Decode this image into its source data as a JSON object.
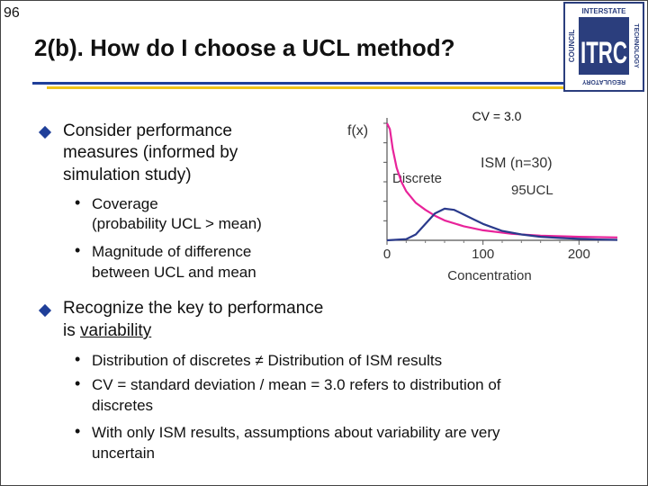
{
  "slide": {
    "page_number": "96",
    "title": "2(b). How do I choose a UCL method?"
  },
  "logo": {
    "text_top": "INTERSTATE",
    "text_left": "COUNCIL",
    "text_right": "TECHNOLOGY",
    "text_bottom": "REGULATORY",
    "letters": "ITRC",
    "colors": {
      "dark": "#2b3e7d",
      "light": "#ffffff"
    }
  },
  "content": {
    "bullet1": {
      "line1": "Consider performance",
      "line2": "measures (informed by",
      "line3": "simulation study)",
      "sub1_line1": "Coverage",
      "sub1_line2": "(probability UCL > mean)",
      "sub2_line1": "Magnitude of difference",
      "sub2_line2": "between UCL and mean"
    },
    "bullet2": {
      "line1": "Recognize the key to performance",
      "line2_prefix": "is ",
      "line2_underlined": "variability",
      "sub1": "Distribution of discretes ≠ Distribution of ISM results",
      "sub2_line1": "CV = standard deviation / mean = 3.0 refers to distribution of",
      "sub2_line2": "discretes",
      "sub3_line1": "With only ISM results, assumptions about variability are very",
      "sub3_line2": "uncertain"
    },
    "sub_bullet_glyph": "•"
  },
  "chart_data": {
    "type": "line",
    "title": "CV = 3.0",
    "ylabel": "f(x)",
    "xlabel": "Concentration",
    "x_ticks": [
      0,
      100,
      200
    ],
    "xlim": [
      0,
      240
    ],
    "labels": {
      "discrete": "Discrete",
      "ism": "ISM (n=30)",
      "ucl": "95UCL"
    },
    "series": [
      {
        "name": "Discrete",
        "color": "#e8239a",
        "x": [
          0,
          3,
          6,
          10,
          15,
          20,
          30,
          40,
          50,
          60,
          80,
          100,
          130,
          160,
          200,
          240
        ],
        "y": [
          1.0,
          0.95,
          0.78,
          0.62,
          0.5,
          0.42,
          0.32,
          0.26,
          0.21,
          0.17,
          0.12,
          0.085,
          0.055,
          0.04,
          0.03,
          0.025
        ]
      },
      {
        "name": "ISM (n=30)",
        "color": "#2a3a8c",
        "x": [
          0,
          20,
          30,
          40,
          50,
          60,
          70,
          80,
          90,
          100,
          120,
          140,
          160,
          180,
          200,
          220,
          240
        ],
        "y": [
          0,
          0.01,
          0.05,
          0.14,
          0.23,
          0.27,
          0.26,
          0.22,
          0.18,
          0.14,
          0.08,
          0.05,
          0.03,
          0.02,
          0.012,
          0.007,
          0.004
        ]
      }
    ]
  }
}
